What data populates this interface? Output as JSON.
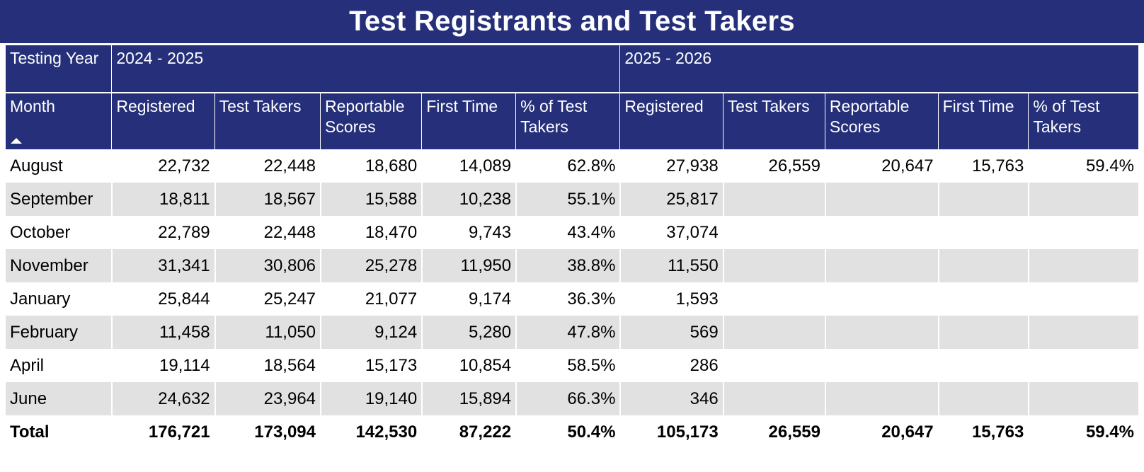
{
  "title": "Test Registrants and Test Takers",
  "header": {
    "testing_year_label": "Testing Year",
    "years": [
      "2024 - 2025",
      "2025 - 2026"
    ],
    "month_label": "Month",
    "columns": [
      "Registered",
      "Test Takers",
      "Reportable Scores",
      "First Time",
      "% of Test Takers"
    ]
  },
  "rows": [
    {
      "month": "August",
      "y1": [
        "22,732",
        "22,448",
        "18,680",
        "14,089",
        "62.8%"
      ],
      "y2": [
        "27,938",
        "26,559",
        "20,647",
        "15,763",
        "59.4%"
      ]
    },
    {
      "month": "September",
      "y1": [
        "18,811",
        "18,567",
        "15,588",
        "10,238",
        "55.1%"
      ],
      "y2": [
        "25,817",
        "",
        "",
        "",
        ""
      ]
    },
    {
      "month": "October",
      "y1": [
        "22,789",
        "22,448",
        "18,470",
        "9,743",
        "43.4%"
      ],
      "y2": [
        "37,074",
        "",
        "",
        "",
        ""
      ]
    },
    {
      "month": "November",
      "y1": [
        "31,341",
        "30,806",
        "25,278",
        "11,950",
        "38.8%"
      ],
      "y2": [
        "11,550",
        "",
        "",
        "",
        ""
      ]
    },
    {
      "month": "January",
      "y1": [
        "25,844",
        "25,247",
        "21,077",
        "9,174",
        "36.3%"
      ],
      "y2": [
        "1,593",
        "",
        "",
        "",
        ""
      ]
    },
    {
      "month": "February",
      "y1": [
        "11,458",
        "11,050",
        "9,124",
        "5,280",
        "47.8%"
      ],
      "y2": [
        "569",
        "",
        "",
        "",
        ""
      ]
    },
    {
      "month": "April",
      "y1": [
        "19,114",
        "18,564",
        "15,173",
        "10,854",
        "58.5%"
      ],
      "y2": [
        "286",
        "",
        "",
        "",
        ""
      ]
    },
    {
      "month": "June",
      "y1": [
        "24,632",
        "23,964",
        "19,140",
        "15,894",
        "66.3%"
      ],
      "y2": [
        "346",
        "",
        "",
        "",
        ""
      ]
    }
  ],
  "total": {
    "label": "Total",
    "y1": [
      "176,721",
      "173,094",
      "142,530",
      "87,222",
      "50.4%"
    ],
    "y2": [
      "105,173",
      "26,559",
      "20,647",
      "15,763",
      "59.4%"
    ]
  },
  "colors": {
    "header_bg": "#26307a",
    "header_text": "#ffffff",
    "row_shade": "#e1e1e1"
  }
}
